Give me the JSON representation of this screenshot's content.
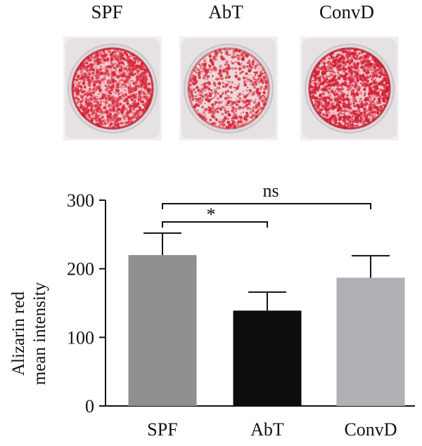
{
  "wells": [
    {
      "label": "SPF",
      "color": "#d8293b",
      "density": 0.25
    },
    {
      "label": "AbT",
      "color": "#d8293b",
      "density": 0.05
    },
    {
      "label": "ConvD",
      "color": "#d32035",
      "density": 0.32
    }
  ],
  "colors": {
    "SPF": "#8f8f8f",
    "AbT": "#0d0d0d",
    "ConvD": "#b0b0b4",
    "stain": "#d8293b",
    "well_rim": "#e9e5e6"
  },
  "significance": [
    {
      "from": "SPF",
      "to": "AbT",
      "label": "*"
    },
    {
      "from": "SPF",
      "to": "ConvD",
      "label": "ns"
    }
  ],
  "chart_data": {
    "type": "bar",
    "categories": [
      "SPF",
      "AbT",
      "ConvD"
    ],
    "values": [
      220,
      139,
      187
    ],
    "errors": [
      32,
      27,
      32
    ],
    "ylabel_line1": "Alizarin red",
    "ylabel_line2": "mean intensity",
    "ylim": [
      0,
      300
    ],
    "yticks": [
      "0",
      "100",
      "200",
      "300"
    ],
    "grid": false,
    "legend": "none"
  }
}
